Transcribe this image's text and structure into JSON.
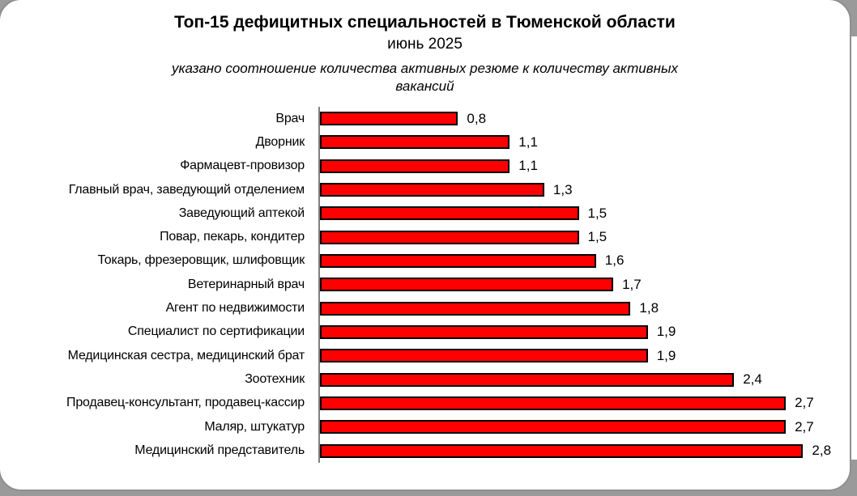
{
  "header": {
    "title": "Топ-15 дефицитных специальностей в Тюменской области",
    "period": "июнь 2025",
    "subtitle_lines": [
      "указано соотношение количества активных резюме к количеству активных",
      "вакансий"
    ]
  },
  "colors": {
    "bar_fill": "#ff0000",
    "bar_border": "#000000",
    "axis_line": "#808080",
    "card_border": "#8f8f8f",
    "page_background": "#9a9a9a",
    "text": "#000000"
  },
  "chart_data": {
    "type": "bar",
    "orientation": "horizontal",
    "title": "Топ-15 дефицитных специальностей в Тюменской области — июнь 2025",
    "subtitle": "указано соотношение количества активных резюме к количеству активных вакансий",
    "xlabel": "",
    "ylabel": "",
    "xlim": [
      0,
      3
    ],
    "grid": false,
    "legend": false,
    "data_labels": true,
    "decimal_separator": ",",
    "categories": [
      "Врач",
      "Дворник",
      "Фармацевт-провизор",
      "Главный врач, заведующий отделением",
      "Заведующий аптекой",
      "Повар, пекарь, кондитер",
      "Токарь, фрезеровщик, шлифовщик",
      "Ветеринарный врач",
      "Агент по недвижимости",
      "Специалист по сертификации",
      "Медицинская сестра, медицинский брат",
      "Зоотехник",
      "Продавец-консультант, продавец-кассир",
      "Маляр, штукатур",
      "Медицинский представитель"
    ],
    "values": [
      0.8,
      1.1,
      1.1,
      1.3,
      1.5,
      1.5,
      1.6,
      1.7,
      1.8,
      1.9,
      1.9,
      2.4,
      2.7,
      2.7,
      2.8
    ],
    "value_labels": [
      "0,8",
      "1,1",
      "1,1",
      "1,3",
      "1,5",
      "1,5",
      "1,6",
      "1,7",
      "1,8",
      "1,9",
      "1,9",
      "2,4",
      "2,7",
      "2,7",
      "2,8"
    ]
  }
}
